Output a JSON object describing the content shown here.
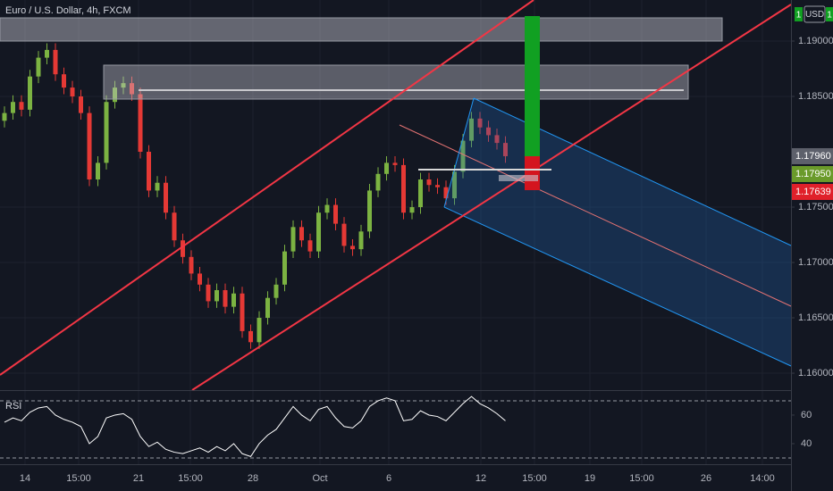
{
  "chart_data": {
    "type": "candlestick",
    "title": "Euro / U.S. Dollar, 4h, FXCM",
    "currency": "USD",
    "flag_labels": [
      "1",
      "1"
    ],
    "open": [
      1.1828,
      1.1835,
      1.1845,
      1.1838,
      1.1868,
      1.1885,
      1.1892,
      1.187,
      1.1858,
      1.185,
      1.1835,
      1.1775,
      1.179,
      1.1845,
      1.1858,
      1.1862,
      1.1852,
      1.18,
      1.1765,
      1.1772,
      1.1745,
      1.172,
      1.1705,
      1.169,
      1.168,
      1.1665,
      1.1675,
      1.166,
      1.1672,
      1.1638,
      1.1628,
      1.165,
      1.1668,
      1.168,
      1.171,
      1.1732,
      1.172,
      1.171,
      1.1745,
      1.1752,
      1.1735,
      1.1715,
      1.1712,
      1.1728,
      1.1765,
      1.178,
      1.179,
      1.1788,
      1.1745,
      1.175,
      1.1775,
      1.177,
      1.1768,
      1.1758,
      1.1782,
      1.181,
      1.183,
      1.1822,
      1.1815,
      1.1808
    ],
    "high": [
      1.1841,
      1.1851,
      1.1851,
      1.1874,
      1.1891,
      1.1898,
      1.1898,
      1.1876,
      1.1864,
      1.1856,
      1.1841,
      1.1796,
      1.1851,
      1.1864,
      1.1868,
      1.1868,
      1.1858,
      1.1806,
      1.1778,
      1.1778,
      1.1751,
      1.1726,
      1.1711,
      1.1696,
      1.1686,
      1.1681,
      1.1681,
      1.1678,
      1.1678,
      1.1644,
      1.1656,
      1.1674,
      1.1686,
      1.1716,
      1.1738,
      1.1738,
      1.1726,
      1.1751,
      1.1758,
      1.1758,
      1.1741,
      1.1721,
      1.1734,
      1.1771,
      1.1786,
      1.1796,
      1.1796,
      1.1794,
      1.1756,
      1.1781,
      1.1781,
      1.1776,
      1.1774,
      1.1788,
      1.1816,
      1.1836,
      1.1836,
      1.1828,
      1.1821,
      1.1814
    ],
    "low": [
      1.1822,
      1.1829,
      1.1832,
      1.1832,
      1.1862,
      1.1879,
      1.1864,
      1.1852,
      1.1844,
      1.1829,
      1.1769,
      1.1769,
      1.1784,
      1.1839,
      1.1852,
      1.1846,
      1.1794,
      1.1759,
      1.1759,
      1.1739,
      1.1714,
      1.1699,
      1.1684,
      1.1674,
      1.1659,
      1.1659,
      1.1654,
      1.1654,
      1.1632,
      1.1622,
      1.1622,
      1.1644,
      1.1662,
      1.1674,
      1.1704,
      1.1714,
      1.1704,
      1.1704,
      1.1739,
      1.1729,
      1.1709,
      1.1706,
      1.1706,
      1.1722,
      1.1759,
      1.1774,
      1.1782,
      1.1739,
      1.1739,
      1.1744,
      1.1764,
      1.1762,
      1.1752,
      1.1752,
      1.1776,
      1.1804,
      1.1816,
      1.1809,
      1.1802,
      1.179
    ],
    "close": [
      1.1835,
      1.1845,
      1.1838,
      1.1868,
      1.1885,
      1.1892,
      1.187,
      1.1858,
      1.185,
      1.1835,
      1.1775,
      1.179,
      1.1845,
      1.1858,
      1.1862,
      1.1852,
      1.18,
      1.1765,
      1.1772,
      1.1745,
      1.172,
      1.1705,
      1.169,
      1.168,
      1.1665,
      1.1675,
      1.166,
      1.1672,
      1.1638,
      1.1628,
      1.165,
      1.1668,
      1.168,
      1.171,
      1.1732,
      1.172,
      1.171,
      1.1745,
      1.1752,
      1.1735,
      1.1715,
      1.1712,
      1.1728,
      1.1765,
      1.178,
      1.179,
      1.1788,
      1.1745,
      1.175,
      1.1775,
      1.177,
      1.1768,
      1.1758,
      1.1782,
      1.181,
      1.183,
      1.1822,
      1.1815,
      1.1808,
      1.1796
    ],
    "up_color": "#7cb342",
    "down_color": "#e53935",
    "ylim": [
      1.15847,
      1.19371
    ],
    "yticks": [
      {
        "value": 1.19,
        "label": "1.19000"
      },
      {
        "value": 1.185,
        "label": "1.18500"
      },
      {
        "value": 1.175,
        "label": "1.17500"
      },
      {
        "value": 1.17,
        "label": "1.17000"
      },
      {
        "value": 1.165,
        "label": "1.16500"
      },
      {
        "value": 1.16,
        "label": "1.16000"
      }
    ],
    "price_tags": [
      {
        "value": 1.1796,
        "label": "1.17960",
        "color": "#5d606b"
      },
      {
        "value": 1.1795,
        "label": "1.17950",
        "color": "#6a9a2a"
      },
      {
        "value": 1.17639,
        "label": "1.17639",
        "color": "#e0202a"
      }
    ],
    "x_labels": [
      "14",
      "15:00",
      "21",
      "15:00",
      "28",
      "Oct",
      "6",
      "12",
      "15:00",
      "19",
      "15:00",
      "26",
      "14:00"
    ],
    "grid": true,
    "rsi": {
      "label": "RSI",
      "color": "#ffffff",
      "values": [
        55,
        58,
        56,
        62,
        65,
        66,
        60,
        57,
        55,
        52,
        40,
        45,
        58,
        60,
        61,
        57,
        45,
        38,
        41,
        36,
        34,
        33,
        35,
        37,
        34,
        38,
        35,
        40,
        33,
        31,
        40,
        46,
        50,
        58,
        66,
        60,
        56,
        64,
        66,
        58,
        52,
        51,
        56,
        66,
        70,
        72,
        70,
        56,
        57,
        63,
        60,
        59,
        56,
        62,
        68,
        73,
        68,
        65,
        61,
        56
      ],
      "ylim": [
        25.6,
        75.6
      ],
      "yticks": [
        60,
        40
      ],
      "bands": [
        70,
        30
      ]
    }
  }
}
